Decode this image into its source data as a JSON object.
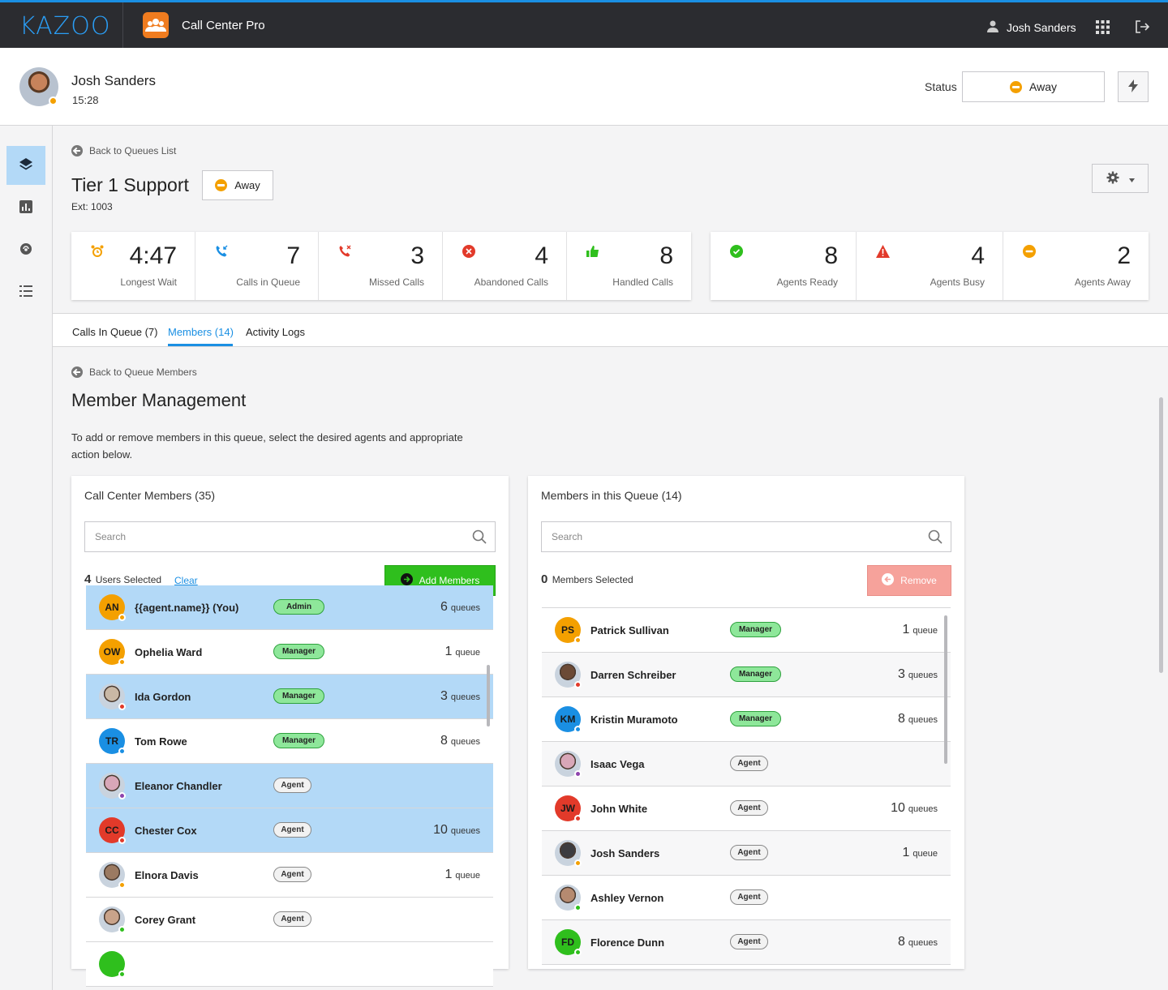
{
  "topbar": {
    "logo": "KAZOO",
    "app_title": "Call Center Pro",
    "user": "Josh Sanders"
  },
  "header": {
    "name": "Josh Sanders",
    "time": "15:28",
    "status_label": "Status",
    "status_value": "Away"
  },
  "queue": {
    "back_label": "Back to Queues List",
    "title": "Tier 1 Support",
    "ext": "Ext: 1003",
    "status": "Away"
  },
  "stats_calls": [
    {
      "icon": "alarm-clock-icon",
      "value": "4:47",
      "label": "Longest Wait",
      "color": "#f4a000"
    },
    {
      "icon": "incoming-call-icon",
      "value": "7",
      "label": "Calls in Queue",
      "color": "#1a8fe3"
    },
    {
      "icon": "missed-call-icon",
      "value": "3",
      "label": "Missed Calls",
      "color": "#e23a2a"
    },
    {
      "icon": "abandoned-x-icon",
      "value": "4",
      "label": "Abandoned Calls",
      "color": "#e23a2a"
    },
    {
      "icon": "thumbs-up-icon",
      "value": "8",
      "label": "Handled Calls",
      "color": "#2fbf1d"
    }
  ],
  "stats_agents": [
    {
      "icon": "check-circle-icon",
      "value": "8",
      "label": "Agents Ready",
      "color": "#2fbf1d"
    },
    {
      "icon": "warning-icon",
      "value": "4",
      "label": "Agents Busy",
      "color": "#e23a2a"
    },
    {
      "icon": "away-icon",
      "value": "2",
      "label": "Agents Away",
      "color": "#f4a000"
    }
  ],
  "tabs": [
    {
      "label": "Calls In Queue (7)"
    },
    {
      "label": "Members (14)"
    },
    {
      "label": "Activity Logs"
    }
  ],
  "member_mgmt": {
    "back_label": "Back to Queue Members",
    "title": "Member Management",
    "description": "To add or remove members in this queue, select the desired agents and appropriate action below."
  },
  "left_panel": {
    "title": "Call Center Members (35)",
    "search_placeholder": "Search",
    "selected_count": "4",
    "selected_label": "Users Selected",
    "clear_label": "Clear",
    "add_label": "Add Members",
    "rows": [
      {
        "initials": "AN",
        "name": "{{agent.name}} (You)",
        "role": "Admin",
        "count": "6",
        "unit": "queues",
        "avatar": "#f4a000",
        "status": "#f4a000",
        "selected": true,
        "photo": false
      },
      {
        "initials": "OW",
        "name": "Ophelia Ward",
        "role": "Manager",
        "count": "1",
        "unit": "queue",
        "avatar": "#f4a000",
        "status": "#f4a000",
        "selected": false,
        "photo": false
      },
      {
        "initials": "",
        "name": "Ida Gordon",
        "role": "Manager",
        "count": "3",
        "unit": "queues",
        "avatar": "#c9b8a5",
        "status": "#e23a2a",
        "selected": true,
        "photo": true
      },
      {
        "initials": "TR",
        "name": "Tom Rowe",
        "role": "Manager",
        "count": "8",
        "unit": "queues",
        "avatar": "#1a8fe3",
        "status": "#1a8fe3",
        "selected": false,
        "photo": false
      },
      {
        "initials": "",
        "name": "Eleanor Chandler",
        "role": "Agent",
        "count": "",
        "unit": "",
        "avatar": "#d8a7b8",
        "status": "#8e44ad",
        "selected": true,
        "photo": true
      },
      {
        "initials": "CC",
        "name": "Chester Cox",
        "role": "Agent",
        "count": "10",
        "unit": "queues",
        "avatar": "#e23a2a",
        "status": "#e23a2a",
        "selected": true,
        "photo": false
      },
      {
        "initials": "",
        "name": "Elnora Davis",
        "role": "Agent",
        "count": "1",
        "unit": "queue",
        "avatar": "#9b7a62",
        "status": "#f4a000",
        "selected": false,
        "photo": true
      },
      {
        "initials": "",
        "name": "Corey Grant",
        "role": "Agent",
        "count": "",
        "unit": "",
        "avatar": "#c9a38a",
        "status": "#2fbf1d",
        "selected": false,
        "photo": true
      },
      {
        "initials": "",
        "name": "",
        "role": "",
        "count": "",
        "unit": "",
        "avatar": "#2fbf1d",
        "status": "#2fbf1d",
        "selected": false,
        "photo": false
      }
    ]
  },
  "right_panel": {
    "title": "Members in this Queue (14)",
    "search_placeholder": "Search",
    "selected_count": "0",
    "selected_label": "Members Selected",
    "remove_label": "Remove",
    "rows": [
      {
        "initials": "PS",
        "name": "Patrick Sullivan",
        "role": "Manager",
        "count": "1",
        "unit": "queue",
        "avatar": "#f4a000",
        "status": "#f4a000",
        "photo": false
      },
      {
        "initials": "",
        "name": "Darren Schreiber",
        "role": "Manager",
        "count": "3",
        "unit": "queues",
        "avatar": "#6b4a36",
        "status": "#e23a2a",
        "photo": true
      },
      {
        "initials": "KM",
        "name": "Kristin Muramoto",
        "role": "Manager",
        "count": "8",
        "unit": "queues",
        "avatar": "#1a8fe3",
        "status": "#1a8fe3",
        "photo": false
      },
      {
        "initials": "",
        "name": "Isaac Vega",
        "role": "Agent",
        "count": "",
        "unit": "",
        "avatar": "#d8a7b8",
        "status": "#8e44ad",
        "photo": true
      },
      {
        "initials": "JW",
        "name": "John White",
        "role": "Agent",
        "count": "10",
        "unit": "queues",
        "avatar": "#e23a2a",
        "status": "#e23a2a",
        "photo": false
      },
      {
        "initials": "",
        "name": "Josh Sanders",
        "role": "Agent",
        "count": "1",
        "unit": "queue",
        "avatar": "#3c3c40",
        "status": "#f4a000",
        "photo": true
      },
      {
        "initials": "",
        "name": "Ashley Vernon",
        "role": "Agent",
        "count": "",
        "unit": "",
        "avatar": "#b58a70",
        "status": "#2fbf1d",
        "photo": true
      },
      {
        "initials": "FD",
        "name": "Florence Dunn",
        "role": "Agent",
        "count": "8",
        "unit": "queues",
        "avatar": "#2fbf1d",
        "status": "#2fbf1d",
        "photo": false
      }
    ]
  }
}
